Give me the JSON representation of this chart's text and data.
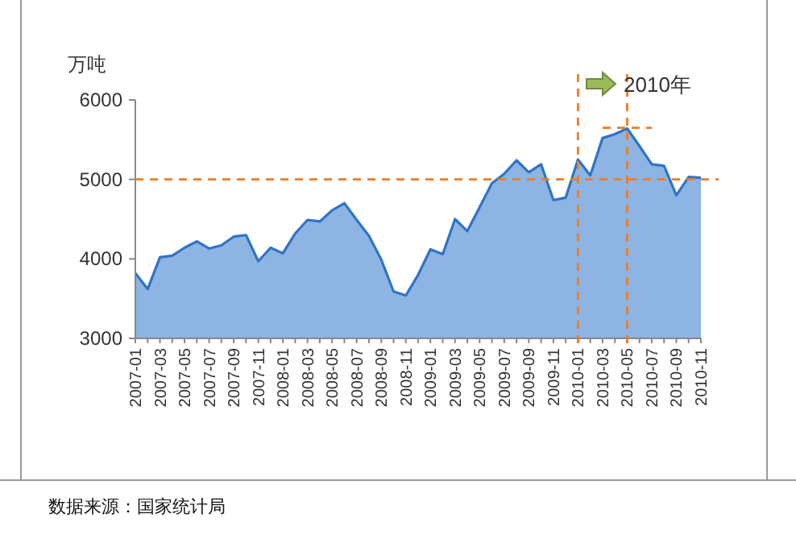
{
  "chart_data": {
    "type": "area",
    "ylabel": "万吨",
    "categories": [
      "2007-01",
      null,
      "2007-03",
      null,
      "2007-05",
      null,
      "2007-07",
      null,
      "2007-09",
      null,
      "2007-11",
      null,
      "2008-01",
      null,
      "2008-03",
      null,
      "2008-05",
      null,
      "2008-07",
      null,
      "2008-09",
      null,
      "2008-11",
      null,
      "2009-01",
      null,
      "2009-03",
      null,
      "2009-05",
      null,
      "2009-07",
      null,
      "2009-09",
      null,
      "2009-11",
      null,
      "2010-01",
      null,
      "2010-03",
      null,
      "2010-05",
      null,
      "2010-07",
      null,
      "2010-09",
      null,
      "2010-11"
    ],
    "series": [
      {
        "color": "#8eb4e3",
        "values": [
          3820,
          3620,
          4020,
          4040,
          4140,
          4220,
          4130,
          4170,
          4280,
          4300,
          3970,
          4140,
          4070,
          4320,
          4490,
          4470,
          4610,
          4700,
          4490,
          4290,
          3990,
          3590,
          3540,
          3800,
          4120,
          4060,
          4500,
          4350,
          4650,
          4950,
          5070,
          5240,
          5090,
          5190,
          4740,
          4770,
          5250,
          5050,
          5520,
          5570,
          5640,
          5420,
          5190,
          5170,
          4800,
          5030,
          5020
        ]
      },
      {
        "type": "line",
        "color": "#f07c22",
        "line_style": "dashed",
        "values": [
          null,
          null,
          null,
          null,
          null,
          null,
          null,
          null,
          null,
          null,
          null,
          null,
          null,
          null,
          null,
          null,
          null,
          null,
          null,
          null,
          null,
          null,
          null,
          null,
          null,
          null,
          null,
          null,
          null,
          null,
          null,
          null,
          null,
          null,
          null,
          null,
          null,
          null,
          5650,
          5650,
          5650,
          5650,
          5650,
          null,
          null,
          null,
          null
        ]
      }
    ],
    "ylim": [
      3000,
      6000
    ],
    "yticks": [
      3000,
      4000,
      5000,
      6000
    ],
    "ref_lines": [
      {
        "axis": "y",
        "value": 5000,
        "color": "#f07c22",
        "line_style": "dashed"
      },
      {
        "axis": "x",
        "value": "2010-01",
        "color": "#f07c22",
        "line_style": "dashed"
      },
      {
        "axis": "x",
        "value": "2010-05",
        "color": "#f07c22",
        "line_style": "dashed"
      }
    ],
    "annotations": [
      "2010年",
      "数据来源：国家统计局"
    ]
  }
}
